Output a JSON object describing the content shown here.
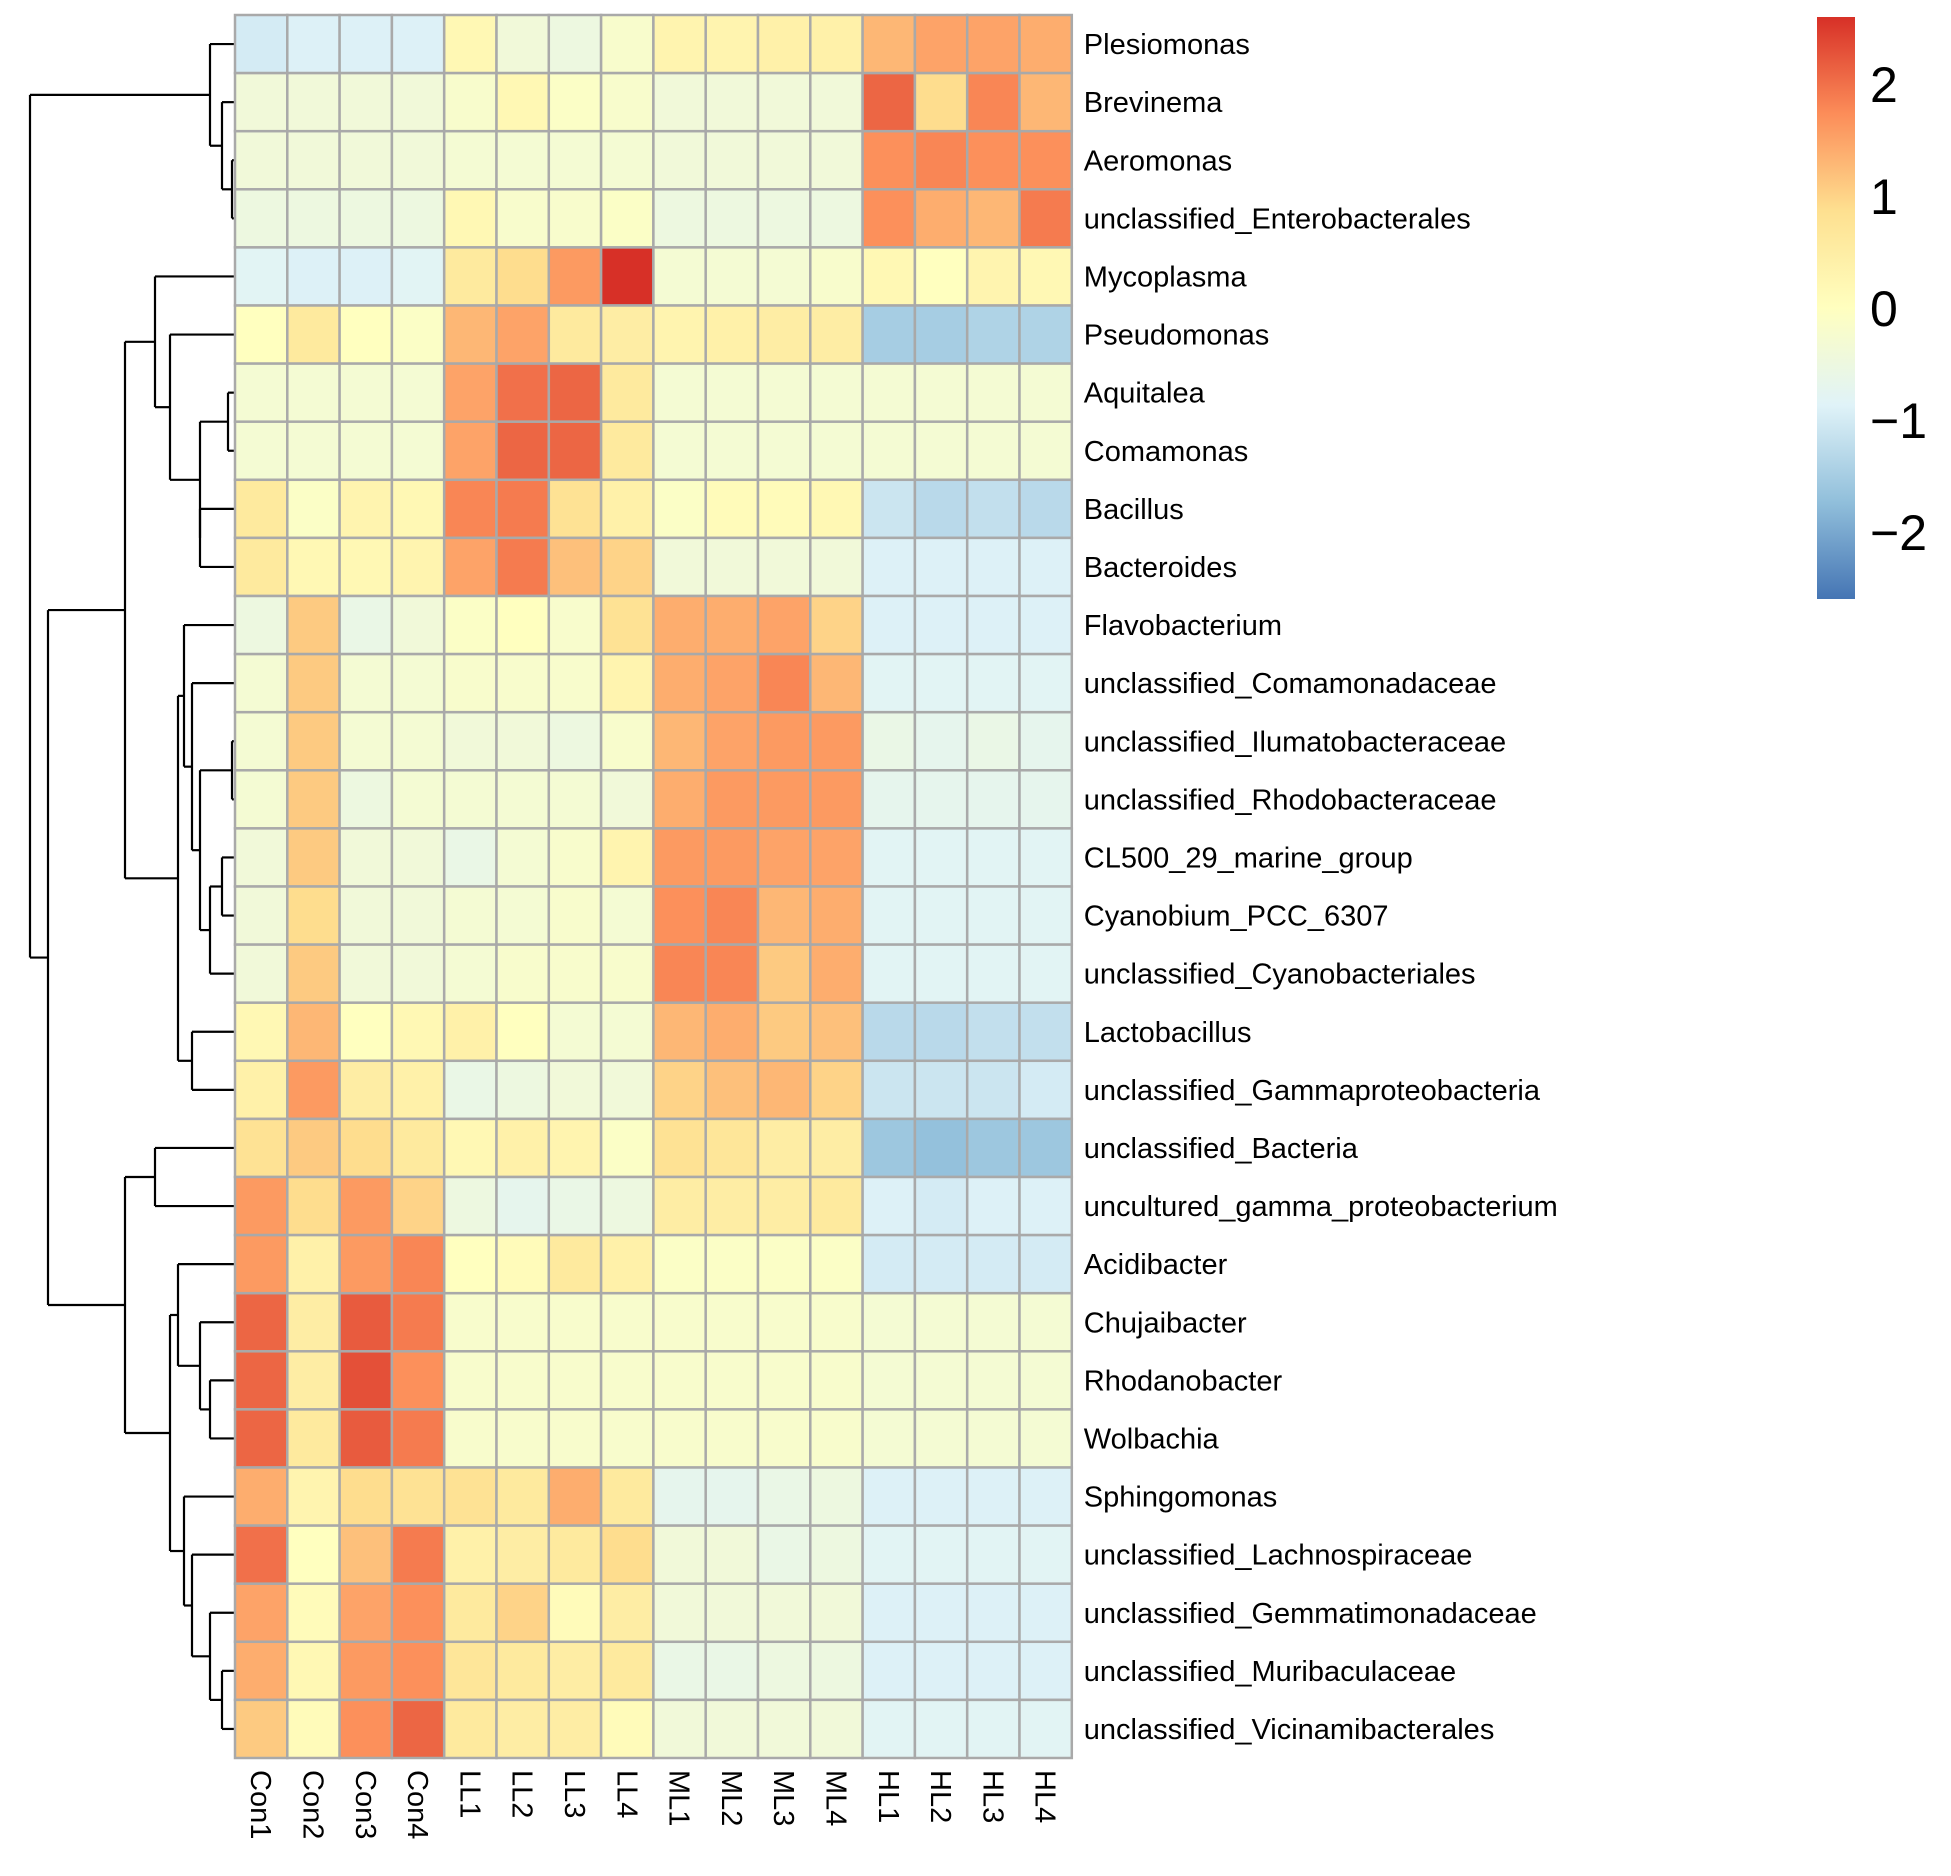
{
  "chart_data": {
    "type": "heatmap",
    "title": "",
    "columns": [
      "Con1",
      "Con2",
      "Con3",
      "Con4",
      "LL1",
      "LL2",
      "LL3",
      "LL4",
      "ML1",
      "ML2",
      "ML3",
      "ML4",
      "HL1",
      "HL2",
      "HL3",
      "HL4"
    ],
    "rows": [
      "Plesiomonas",
      "Brevinema",
      "Aeromonas",
      "unclassified_Enterobacterales",
      "Mycoplasma",
      "Pseudomonas",
      "Aquitalea",
      "Comamonas",
      "Bacillus",
      "Bacteroides",
      "Flavobacterium",
      "unclassified_Comamonadaceae",
      "unclassified_Ilumatobacteraceae",
      "unclassified_Rhodobacteraceae",
      "CL500_29_marine_group",
      "Cyanobium_PCC_6307",
      "unclassified_Cyanobacteriales",
      "Lactobacillus",
      "unclassified_Gammaproteobacteria",
      "unclassified_Bacteria",
      "uncultured_gamma_proteobacterium",
      "Acidibacter",
      "Chujaibacter",
      "Rhodanobacter",
      "Wolbachia",
      "Sphingomonas",
      "unclassified_Lachnospiraceae",
      "unclassified_Gemmatimonadaceae",
      "unclassified_Muribaculaceae",
      "unclassified_Vicinamibacterales"
    ],
    "values": [
      [
        -1.0,
        -0.9,
        -0.9,
        -0.9,
        0.2,
        -0.4,
        -0.5,
        -0.2,
        0.3,
        0.3,
        0.4,
        0.4,
        1.3,
        1.5,
        1.5,
        1.4
      ],
      [
        -0.4,
        -0.4,
        -0.4,
        -0.4,
        -0.2,
        0.2,
        -0.1,
        -0.2,
        -0.4,
        -0.4,
        -0.4,
        -0.4,
        2.1,
        0.9,
        1.8,
        1.3
      ],
      [
        -0.4,
        -0.4,
        -0.4,
        -0.4,
        -0.3,
        -0.3,
        -0.3,
        -0.3,
        -0.4,
        -0.4,
        -0.4,
        -0.4,
        1.7,
        1.8,
        1.7,
        1.7
      ],
      [
        -0.5,
        -0.5,
        -0.5,
        -0.5,
        0.2,
        -0.2,
        -0.2,
        -0.1,
        -0.5,
        -0.5,
        -0.5,
        -0.5,
        1.7,
        1.4,
        1.3,
        1.9
      ],
      [
        -0.8,
        -0.9,
        -0.9,
        -0.8,
        0.6,
        0.9,
        1.6,
        2.6,
        -0.3,
        -0.3,
        -0.3,
        -0.2,
        0.2,
        0.0,
        0.3,
        0.2
      ],
      [
        0.0,
        0.6,
        0.0,
        -0.1,
        1.3,
        1.5,
        0.6,
        0.5,
        0.3,
        0.4,
        0.5,
        0.5,
        -1.5,
        -1.5,
        -1.4,
        -1.4
      ],
      [
        -0.3,
        -0.3,
        -0.3,
        -0.3,
        1.5,
        2.0,
        2.1,
        0.6,
        -0.3,
        -0.3,
        -0.3,
        -0.3,
        -0.3,
        -0.3,
        -0.3,
        -0.3
      ],
      [
        -0.3,
        -0.3,
        -0.3,
        -0.3,
        1.5,
        2.1,
        2.1,
        0.6,
        -0.3,
        -0.3,
        -0.3,
        -0.3,
        -0.3,
        -0.3,
        -0.3,
        -0.3
      ],
      [
        0.6,
        -0.1,
        0.3,
        0.2,
        1.8,
        1.9,
        0.8,
        0.4,
        -0.1,
        0.1,
        0.1,
        0.2,
        -1.1,
        -1.3,
        -1.2,
        -1.3
      ],
      [
        0.6,
        0.2,
        0.2,
        0.3,
        1.5,
        1.9,
        1.2,
        1.0,
        -0.4,
        -0.4,
        -0.4,
        -0.4,
        -0.9,
        -0.9,
        -0.9,
        -0.9
      ],
      [
        -0.5,
        1.1,
        -0.6,
        -0.4,
        -0.1,
        0.0,
        -0.2,
        0.8,
        1.4,
        1.4,
        1.5,
        1.0,
        -0.9,
        -0.9,
        -0.9,
        -0.9
      ],
      [
        -0.3,
        1.1,
        -0.3,
        -0.3,
        -0.2,
        -0.2,
        -0.2,
        0.3,
        1.4,
        1.5,
        1.8,
        1.3,
        -0.8,
        -0.8,
        -0.8,
        -0.8
      ],
      [
        -0.3,
        1.1,
        -0.3,
        -0.3,
        -0.4,
        -0.4,
        -0.5,
        -0.2,
        1.3,
        1.5,
        1.6,
        1.6,
        -0.6,
        -0.7,
        -0.6,
        -0.7
      ],
      [
        -0.3,
        1.1,
        -0.5,
        -0.3,
        -0.3,
        -0.3,
        -0.3,
        -0.4,
        1.4,
        1.6,
        1.6,
        1.6,
        -0.7,
        -0.7,
        -0.7,
        -0.7
      ],
      [
        -0.4,
        1.1,
        -0.4,
        -0.4,
        -0.6,
        -0.3,
        -0.2,
        0.3,
        1.6,
        1.6,
        1.5,
        1.5,
        -0.8,
        -0.8,
        -0.8,
        -0.8
      ],
      [
        -0.4,
        0.9,
        -0.4,
        -0.4,
        -0.3,
        -0.3,
        -0.2,
        -0.3,
        1.7,
        1.8,
        1.3,
        1.4,
        -0.8,
        -0.8,
        -0.8,
        -0.8
      ],
      [
        -0.4,
        1.1,
        -0.4,
        -0.4,
        -0.3,
        -0.2,
        -0.2,
        -0.2,
        1.8,
        1.8,
        1.1,
        1.4,
        -0.8,
        -0.8,
        -0.8,
        -0.8
      ],
      [
        0.2,
        1.3,
        0.0,
        0.2,
        0.4,
        0.0,
        -0.3,
        -0.3,
        1.3,
        1.4,
        1.1,
        1.2,
        -1.3,
        -1.3,
        -1.2,
        -1.2
      ],
      [
        0.4,
        1.6,
        0.5,
        0.4,
        -0.6,
        -0.5,
        -0.4,
        -0.4,
        1.0,
        1.2,
        1.3,
        1.0,
        -1.1,
        -1.1,
        -1.1,
        -1.0
      ],
      [
        0.8,
        1.1,
        0.9,
        0.6,
        0.2,
        0.4,
        0.3,
        -0.1,
        0.8,
        0.7,
        0.5,
        0.5,
        -1.6,
        -1.7,
        -1.6,
        -1.6
      ],
      [
        1.6,
        0.9,
        1.6,
        1.0,
        -0.5,
        -0.7,
        -0.6,
        -0.5,
        0.5,
        0.5,
        0.5,
        0.6,
        -0.9,
        -1.0,
        -0.9,
        -0.9
      ],
      [
        1.6,
        0.4,
        1.6,
        1.8,
        0.0,
        0.1,
        0.6,
        0.4,
        -0.1,
        -0.1,
        -0.1,
        -0.1,
        -1.0,
        -1.0,
        -1.0,
        -1.0
      ],
      [
        2.1,
        0.5,
        2.2,
        1.9,
        -0.2,
        -0.2,
        -0.2,
        -0.2,
        -0.2,
        -0.2,
        -0.2,
        -0.2,
        -0.3,
        -0.3,
        -0.3,
        -0.3
      ],
      [
        2.1,
        0.5,
        2.3,
        1.7,
        -0.2,
        -0.2,
        -0.2,
        -0.2,
        -0.2,
        -0.2,
        -0.2,
        -0.2,
        -0.3,
        -0.3,
        -0.3,
        -0.3
      ],
      [
        2.1,
        0.6,
        2.2,
        1.9,
        -0.2,
        -0.2,
        -0.2,
        -0.2,
        -0.2,
        -0.2,
        -0.2,
        -0.2,
        -0.3,
        -0.3,
        -0.3,
        -0.3
      ],
      [
        1.4,
        0.3,
        0.9,
        0.8,
        0.8,
        0.6,
        1.4,
        0.6,
        -0.7,
        -0.7,
        -0.6,
        -0.5,
        -0.9,
        -0.9,
        -0.9,
        -0.9
      ],
      [
        2.0,
        0.0,
        1.2,
        1.9,
        0.4,
        0.5,
        0.6,
        0.9,
        -0.4,
        -0.4,
        -0.6,
        -0.5,
        -0.8,
        -0.8,
        -0.8,
        -0.8
      ],
      [
        1.5,
        0.1,
        1.5,
        1.7,
        0.6,
        1.0,
        0.1,
        0.5,
        -0.4,
        -0.4,
        -0.4,
        -0.4,
        -0.9,
        -0.9,
        -0.9,
        -0.9
      ],
      [
        1.4,
        0.2,
        1.6,
        1.7,
        0.7,
        0.6,
        0.5,
        0.6,
        -0.6,
        -0.6,
        -0.5,
        -0.5,
        -0.9,
        -0.9,
        -0.9,
        -0.9
      ],
      [
        1.1,
        0.1,
        1.7,
        2.1,
        0.6,
        0.5,
        0.5,
        0.1,
        -0.4,
        -0.4,
        -0.4,
        -0.4,
        -0.8,
        -0.8,
        -0.8,
        -0.8
      ]
    ],
    "colorbar": {
      "min": -2.6,
      "max": 2.6,
      "ticks": [
        2,
        1,
        0,
        -1,
        -2
      ],
      "tick_labels": [
        "2",
        "1",
        "0",
        "−1",
        "−2"
      ],
      "colors": [
        "#4575b4",
        "#91bfdb",
        "#e0f3f8",
        "#ffffbf",
        "#fee090",
        "#fc8d59",
        "#d73027"
      ]
    },
    "row_dendrogram": "shown (left)",
    "legend_position": "top-right"
  }
}
